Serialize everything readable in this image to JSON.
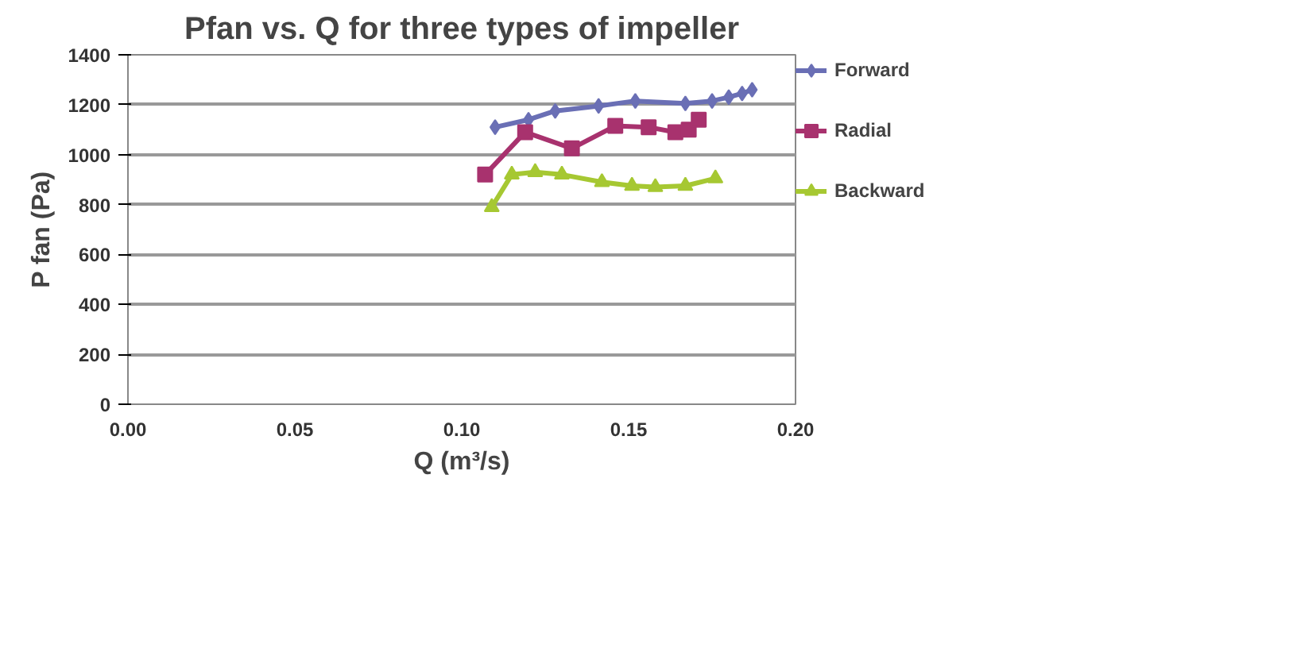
{
  "chart_data": {
    "type": "line",
    "title": "Pfan vs. Q for three types of impeller",
    "xlabel": "Q (m³/s)",
    "ylabel": "P fan (Pa)",
    "xlim": [
      0,
      0.2
    ],
    "ylim": [
      0,
      1400
    ],
    "xticks": [
      {
        "value": 0,
        "label": "0.00"
      },
      {
        "value": 0.05,
        "label": "0.05"
      },
      {
        "value": 0.1,
        "label": "0.10"
      },
      {
        "value": 0.15,
        "label": "0.15"
      },
      {
        "value": 0.2,
        "label": "0.20"
      }
    ],
    "yticks": [
      0,
      200,
      400,
      600,
      800,
      1000,
      1200,
      1400
    ],
    "grid": "y",
    "legend": "right",
    "series": [
      {
        "name": "Forward",
        "color": "#6a6fb5",
        "marker": "diamond",
        "x": [
          0.11,
          0.12,
          0.128,
          0.141,
          0.152,
          0.167,
          0.175,
          0.18,
          0.184,
          0.187
        ],
        "values": [
          1110,
          1140,
          1175,
          1195,
          1215,
          1205,
          1215,
          1230,
          1245,
          1260
        ]
      },
      {
        "name": "Radial",
        "color": "#a8326e",
        "marker": "square",
        "x": [
          0.107,
          0.119,
          0.133,
          0.146,
          0.156,
          0.164,
          0.168,
          0.171
        ],
        "values": [
          920,
          1090,
          1025,
          1115,
          1110,
          1090,
          1100,
          1140
        ]
      },
      {
        "name": "Backward",
        "color": "#a6c832",
        "marker": "triangle",
        "x": [
          0.109,
          0.115,
          0.122,
          0.13,
          0.142,
          0.151,
          0.158,
          0.167,
          0.176
        ],
        "values": [
          790,
          920,
          930,
          920,
          890,
          875,
          870,
          875,
          905
        ]
      }
    ]
  }
}
